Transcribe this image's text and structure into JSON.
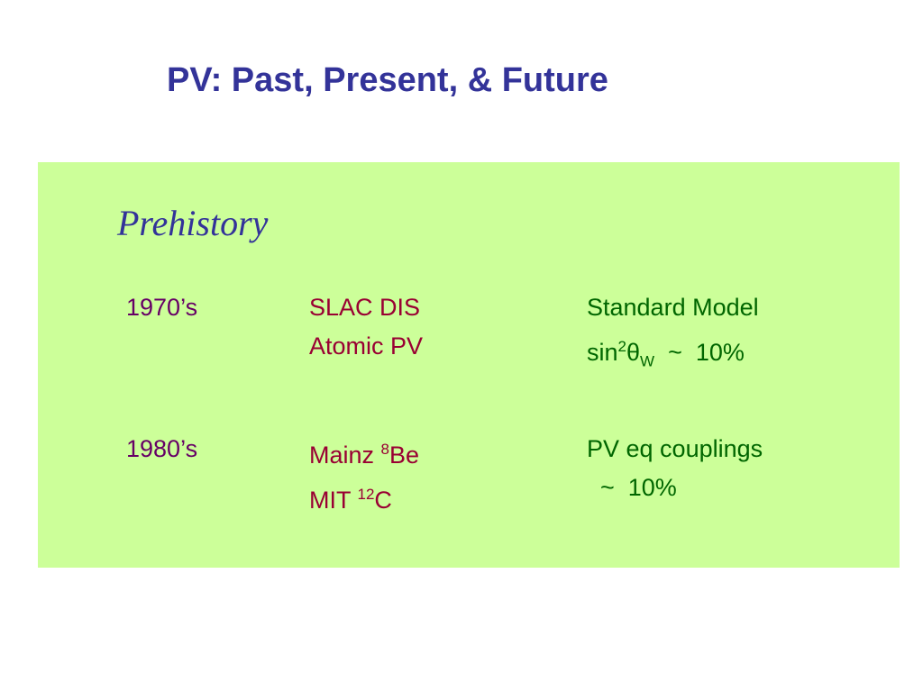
{
  "title": "PV: Past, Present, & Future",
  "section": {
    "heading": "Prehistory",
    "rows": [
      {
        "era": "1970’s",
        "experiments": [
          [
            {
              "text": "SLAC DIS"
            }
          ],
          [
            {
              "text": "Atomic PV"
            }
          ]
        ],
        "results": [
          [
            {
              "text": "Standard Model"
            }
          ],
          [
            {
              "text": "sin"
            },
            {
              "sup": "2"
            },
            {
              "text": "θ"
            },
            {
              "sub": "W"
            },
            {
              "text": "  ~  10%"
            }
          ]
        ]
      },
      {
        "era": "1980’s",
        "experiments": [
          [
            {
              "text": "Mainz "
            },
            {
              "sup": "8"
            },
            {
              "text": "Be"
            }
          ],
          [
            {
              "text": "MIT "
            },
            {
              "sup": "12"
            },
            {
              "text": "C"
            }
          ]
        ],
        "results": [
          [
            {
              "text": "PV eq couplings"
            }
          ],
          [
            {
              "text": "  ~  10%"
            }
          ]
        ]
      }
    ]
  }
}
